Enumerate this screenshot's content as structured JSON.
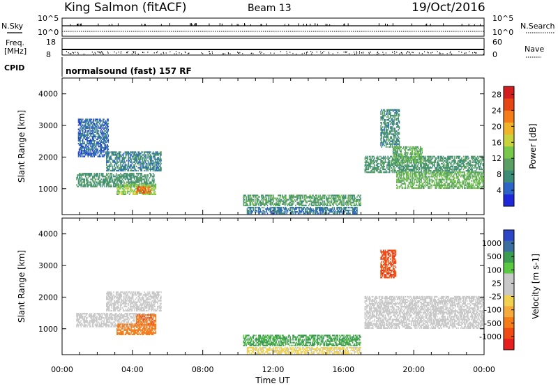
{
  "header": {
    "station": "King Salmon (fitACF)",
    "beam": "Beam 13",
    "date": "19/Oct/2016"
  },
  "strips": {
    "nsky_label": "N.Sky",
    "nsky_ticks": [
      "10^5",
      "10^0"
    ],
    "nsearch_label": "N.Search",
    "nsearch_ticks": [
      "10^5",
      "10^0"
    ],
    "freq_label_1": "Freq.",
    "freq_label_2": "[MHz]",
    "freq_ticks": [
      "18",
      "8"
    ],
    "nave_label": "Nave",
    "nave_ticks": [
      "60",
      "0"
    ],
    "cpid_label": "CPID",
    "cpid_text": "normalsound (fast) 157 RF"
  },
  "colors": {
    "power": [
      "#1e28d8",
      "#2d64c8",
      "#3c8c78",
      "#5aa064",
      "#78c84b",
      "#c8d23c",
      "#f0b428",
      "#f57d19",
      "#e64614",
      "#d21e1e"
    ],
    "velocity_neg": [
      "#e61e1e",
      "#f04b14",
      "#f57d19",
      "#f5aa3c",
      "#f0d250"
    ],
    "velocity_gs": "#c8c8c8",
    "velocity_pos": [
      "#5ac840",
      "#3c9c50",
      "#3c6ea0",
      "#2d46c8"
    ]
  },
  "chart_data": [
    {
      "type": "heatmap",
      "title": "",
      "xlabel": "Time UT",
      "ylabel": "Slant Range [km]",
      "xlim": [
        "00:00",
        "24:00"
      ],
      "ylim": [
        180,
        4500
      ],
      "x_ticks": [
        "00:00",
        "04:00",
        "08:00",
        "12:00",
        "16:00",
        "20:00",
        "00:00"
      ],
      "y_ticks": [
        "1000",
        "2000",
        "3000",
        "4000"
      ],
      "colorbar_label": "Power [dB]",
      "colorbar_ticks": [
        "4",
        "8",
        "12",
        "16",
        "20",
        "24",
        "28"
      ],
      "colorbar_range": [
        0,
        30
      ],
      "regions": [
        {
          "t0": 0.8,
          "t1": 5.2,
          "r0": 1050,
          "r1": 1500,
          "value": 9
        },
        {
          "t0": 2.5,
          "t1": 5.6,
          "r0": 1550,
          "r1": 2150,
          "value": 7
        },
        {
          "t0": 0.9,
          "t1": 2.6,
          "r0": 2000,
          "r1": 3200,
          "value": 5
        },
        {
          "t0": 3.1,
          "t1": 5.3,
          "r0": 800,
          "r1": 1150,
          "value": 14
        },
        {
          "t0": 4.2,
          "t1": 5.0,
          "r0": 850,
          "r1": 1050,
          "value": 24
        },
        {
          "t0": 10.3,
          "t1": 17.0,
          "r0": 450,
          "r1": 800,
          "value": 10
        },
        {
          "t0": 10.5,
          "t1": 16.8,
          "r0": 200,
          "r1": 420,
          "value": 6
        },
        {
          "t0": 17.2,
          "t1": 24.0,
          "r0": 1500,
          "r1": 2000,
          "value": 9
        },
        {
          "t0": 19.0,
          "t1": 24.0,
          "r0": 1000,
          "r1": 1500,
          "value": 12
        },
        {
          "t0": 18.1,
          "t1": 19.2,
          "r0": 2300,
          "r1": 3500,
          "value": 8
        },
        {
          "t0": 18.8,
          "t1": 20.5,
          "r0": 1800,
          "r1": 2300,
          "value": 11
        }
      ]
    },
    {
      "type": "heatmap",
      "title": "",
      "xlabel": "Time UT",
      "ylabel": "Slant Range [km]",
      "xlim": [
        "00:00",
        "24:00"
      ],
      "ylim": [
        180,
        4500
      ],
      "x_ticks": [
        "00:00",
        "04:00",
        "08:00",
        "12:00",
        "16:00",
        "20:00",
        "00:00"
      ],
      "y_ticks": [
        "1000",
        "2000",
        "3000",
        "4000"
      ],
      "colorbar_label": "Velocity [m s-1]",
      "colorbar_ticks": [
        "1000",
        "500",
        "100",
        "25",
        "-25",
        "-100",
        "-500",
        "-1000"
      ],
      "regions": [
        {
          "t0": 0.8,
          "t1": 5.2,
          "r0": 1050,
          "r1": 1500,
          "value": 0
        },
        {
          "t0": 2.5,
          "t1": 5.6,
          "r0": 1550,
          "r1": 2150,
          "value": 0
        },
        {
          "t0": 3.1,
          "t1": 5.3,
          "r0": 800,
          "r1": 1150,
          "value": -150
        },
        {
          "t0": 4.2,
          "t1": 5.3,
          "r0": 1100,
          "r1": 1450,
          "value": -250
        },
        {
          "t0": 10.3,
          "t1": 17.0,
          "r0": 450,
          "r1": 800,
          "value": 120
        },
        {
          "t0": 17.2,
          "t1": 24.0,
          "r0": 1000,
          "r1": 2000,
          "value": 0
        },
        {
          "t0": 18.1,
          "t1": 19.0,
          "r0": 2600,
          "r1": 3500,
          "value": -400
        },
        {
          "t0": 10.5,
          "t1": 17.0,
          "r0": 200,
          "r1": 420,
          "value": -30
        }
      ]
    }
  ]
}
